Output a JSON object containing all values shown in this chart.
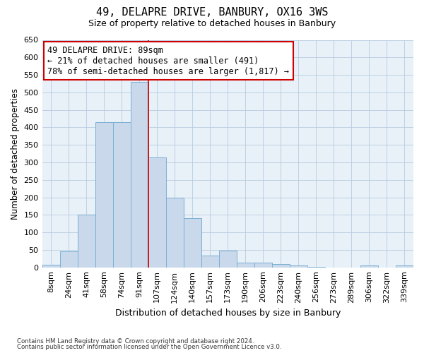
{
  "title": "49, DELAPRE DRIVE, BANBURY, OX16 3WS",
  "subtitle": "Size of property relative to detached houses in Banbury",
  "xlabel": "Distribution of detached houses by size in Banbury",
  "ylabel": "Number of detached properties",
  "categories": [
    "8sqm",
    "24sqm",
    "41sqm",
    "58sqm",
    "74sqm",
    "91sqm",
    "107sqm",
    "124sqm",
    "140sqm",
    "157sqm",
    "173sqm",
    "190sqm",
    "206sqm",
    "223sqm",
    "240sqm",
    "256sqm",
    "273sqm",
    "289sqm",
    "306sqm",
    "322sqm",
    "339sqm"
  ],
  "values": [
    7,
    45,
    150,
    415,
    415,
    530,
    315,
    200,
    140,
    33,
    47,
    14,
    13,
    9,
    6,
    1,
    0,
    0,
    5,
    0,
    5
  ],
  "bar_color": "#c9d9eb",
  "bar_edgecolor": "#7bafd4",
  "vline_color": "#cc0000",
  "vline_position": 5.5,
  "annotation_text": "49 DELAPRE DRIVE: 89sqm\n← 21% of detached houses are smaller (491)\n78% of semi-detached houses are larger (1,817) →",
  "annotation_box_color": "white",
  "annotation_box_edgecolor": "#cc0000",
  "ylim": [
    0,
    650
  ],
  "yticks": [
    0,
    50,
    100,
    150,
    200,
    250,
    300,
    350,
    400,
    450,
    500,
    550,
    600,
    650
  ],
  "footer1": "Contains HM Land Registry data © Crown copyright and database right 2024.",
  "footer2": "Contains public sector information licensed under the Open Government Licence v3.0.",
  "bg_color": "#e8f0f8",
  "grid_color": "#b8cce0"
}
